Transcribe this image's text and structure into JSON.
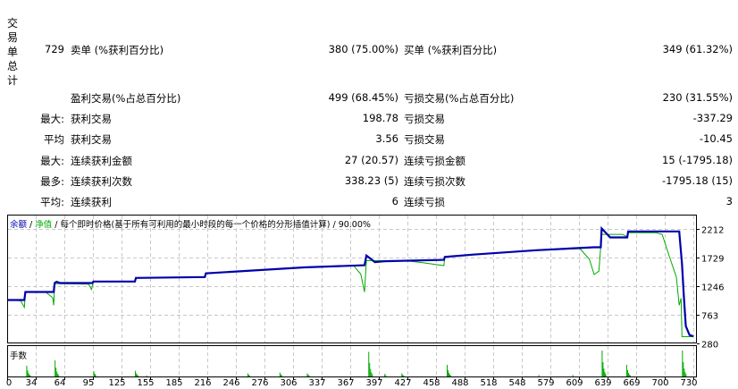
{
  "summary": {
    "vertical_label": "交易单总计",
    "rows": [
      {
        "c1": "729",
        "c2": "卖单 (%获利百分比)",
        "c3": "380 (75.00%)",
        "c4": "买单 (%获利百分比)",
        "c5": "349 (61.32%)"
      },
      {
        "c1": "",
        "c2": "盈利交易(%占总百分比)",
        "c3": "499 (68.45%)",
        "c4": "亏损交易(%占总百分比)",
        "c5": "230 (31.55%)"
      },
      {
        "c1": "最大:",
        "c2": "获利交易",
        "c3": "198.78",
        "c4": "亏损交易",
        "c5": "-337.29"
      },
      {
        "c1": "平均",
        "c2": "获利交易",
        "c3": "3.56",
        "c4": "亏损交易",
        "c5": "-10.45"
      },
      {
        "c1": "最大:",
        "c2": "连续获利金额",
        "c3": "27 (20.57)",
        "c4": "连续亏损金额",
        "c5": "15 (-1795.18)"
      },
      {
        "c1": "最多:",
        "c2": "连续获利次数",
        "c3": "338.23 (5)",
        "c4": "连续亏损次数",
        "c5": "-1795.18 (15)"
      },
      {
        "c1": "平均:",
        "c2": "连续获利",
        "c3": "6",
        "c4": "连续亏损",
        "c5": "3"
      }
    ]
  },
  "chart_data": {
    "type": "line",
    "legend": {
      "balance": "余额",
      "sep1": " / ",
      "equity": "净值",
      "sep2": " / ",
      "model": "每个即时价格(基于所有可利用的最小时段的每一个价格的分形插值计算)",
      "sep3": " / ",
      "quality": "90.00%"
    },
    "colors": {
      "balance": "#0000aa",
      "equity": "#00aa00",
      "volume": "#00aa00",
      "grid": "#c8c8c8"
    },
    "grid": true,
    "xlim": [
      0,
      736
    ],
    "ylim": [
      280,
      2363
    ],
    "x_ticks": [
      0,
      34,
      64,
      95,
      125,
      155,
      185,
      216,
      246,
      276,
      306,
      337,
      367,
      397,
      427,
      458,
      488,
      518,
      548,
      579,
      609,
      639,
      669,
      700,
      730
    ],
    "y_ticks": [
      2212,
      1729,
      1246,
      763,
      280
    ],
    "series": [
      {
        "name": "余额",
        "points": [
          [
            4,
            1013
          ],
          [
            22,
            1013
          ],
          [
            23,
            1149
          ],
          [
            53,
            1149
          ],
          [
            54,
            1300
          ],
          [
            56,
            1320
          ],
          [
            60,
            1300
          ],
          [
            94,
            1300
          ],
          [
            95,
            1325
          ],
          [
            139,
            1325
          ],
          [
            140,
            1386
          ],
          [
            213,
            1400
          ],
          [
            214,
            1462
          ],
          [
            318,
            1563
          ],
          [
            382,
            1600
          ],
          [
            384,
            1765
          ],
          [
            393,
            1653
          ],
          [
            403,
            1668
          ],
          [
            466,
            1690
          ],
          [
            467,
            1740
          ],
          [
            497,
            1779
          ],
          [
            564,
            1854
          ],
          [
            625,
            1904
          ],
          [
            632,
            1904
          ],
          [
            633,
            2221
          ],
          [
            642,
            2070
          ],
          [
            660,
            2070
          ],
          [
            661,
            2171
          ],
          [
            715,
            2171
          ],
          [
            718,
            1627
          ],
          [
            720,
            1073
          ],
          [
            722,
            571
          ],
          [
            726,
            420
          ],
          [
            730,
            400
          ]
        ]
      },
      {
        "name": "净值",
        "points": [
          [
            4,
            1013
          ],
          [
            18,
            1000
          ],
          [
            22,
            888
          ],
          [
            23,
            1149
          ],
          [
            45,
            1140
          ],
          [
            52,
            1050
          ],
          [
            53,
            923
          ],
          [
            54,
            1290
          ],
          [
            90,
            1280
          ],
          [
            93,
            1190
          ],
          [
            95,
            1320
          ],
          [
            139,
            1320
          ],
          [
            140,
            1386
          ],
          [
            213,
            1395
          ],
          [
            214,
            1462
          ],
          [
            318,
            1560
          ],
          [
            370,
            1600
          ],
          [
            378,
            1450
          ],
          [
            382,
            1149
          ],
          [
            384,
            1680
          ],
          [
            430,
            1668
          ],
          [
            440,
            1650
          ],
          [
            466,
            1593
          ],
          [
            467,
            1740
          ],
          [
            497,
            1775
          ],
          [
            564,
            1850
          ],
          [
            610,
            1880
          ],
          [
            620,
            1700
          ],
          [
            625,
            1442
          ],
          [
            630,
            1500
          ],
          [
            633,
            2120
          ],
          [
            655,
            2120
          ],
          [
            660,
            2080
          ],
          [
            661,
            2150
          ],
          [
            690,
            2150
          ],
          [
            697,
            2120
          ],
          [
            705,
            1729
          ],
          [
            712,
            1400
          ],
          [
            715,
            923
          ],
          [
            717,
            1043
          ],
          [
            718,
            394
          ],
          [
            730,
            394
          ]
        ]
      }
    ],
    "volume": {
      "label": "手数",
      "clusters": [
        [
          24,
          0.42
        ],
        [
          54,
          0.62
        ],
        [
          95,
          0.2
        ],
        [
          139,
          0.22
        ],
        [
          151,
          0.04
        ],
        [
          164,
          0.03
        ],
        [
          258,
          0.12
        ],
        [
          292,
          0.15
        ],
        [
          321,
          0.12
        ],
        [
          386,
          0.95
        ],
        [
          403,
          0.1
        ],
        [
          421,
          0.12
        ],
        [
          469,
          0.45
        ],
        [
          503,
          0.03
        ],
        [
          552,
          0.03
        ],
        [
          566,
          0.06
        ],
        [
          602,
          0.06
        ],
        [
          633,
          1.0
        ],
        [
          659,
          0.45
        ],
        [
          718,
          1.0
        ]
      ]
    }
  }
}
